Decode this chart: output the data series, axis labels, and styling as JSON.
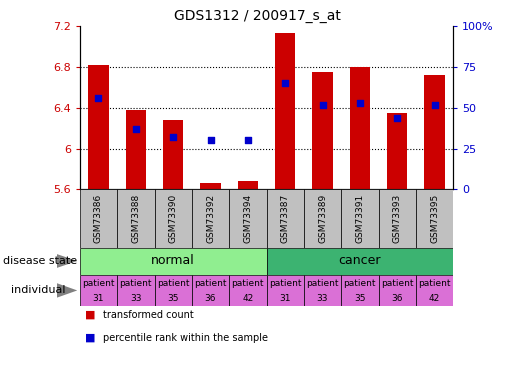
{
  "title": "GDS1312 / 200917_s_at",
  "samples": [
    "GSM73386",
    "GSM73388",
    "GSM73390",
    "GSM73392",
    "GSM73394",
    "GSM73387",
    "GSM73389",
    "GSM73391",
    "GSM73393",
    "GSM73395"
  ],
  "transformed_count": [
    6.82,
    6.38,
    6.28,
    5.66,
    5.68,
    7.13,
    6.75,
    6.8,
    6.35,
    6.72
  ],
  "percentile_rank": [
    56,
    37,
    32,
    30,
    30,
    65,
    52,
    53,
    44,
    52
  ],
  "y_min": 5.6,
  "y_max": 7.2,
  "y_ticks": [
    5.6,
    6.0,
    6.4,
    6.8,
    7.2
  ],
  "y_tick_labels": [
    "5.6",
    "6",
    "6.4",
    "6.8",
    "7.2"
  ],
  "right_y_ticks": [
    0,
    25,
    50,
    75,
    100
  ],
  "right_y_labels": [
    "0",
    "25",
    "50",
    "75",
    "100%"
  ],
  "disease_groups": [
    {
      "label": "normal",
      "start": 0,
      "end": 5,
      "color": "#90EE90"
    },
    {
      "label": "cancer",
      "start": 5,
      "end": 10,
      "color": "#3CB371"
    }
  ],
  "individuals": [
    [
      "patient",
      "31"
    ],
    [
      "patient",
      "33"
    ],
    [
      "patient",
      "35"
    ],
    [
      "patient",
      "36"
    ],
    [
      "patient",
      "42"
    ],
    [
      "patient",
      "31"
    ],
    [
      "patient",
      "33"
    ],
    [
      "patient",
      "35"
    ],
    [
      "patient",
      "36"
    ],
    [
      "patient",
      "42"
    ]
  ],
  "individual_color": "#DA70D6",
  "bar_color": "#CC0000",
  "dot_color": "#0000CC",
  "bar_width": 0.55,
  "tick_label_color_left": "#CC0000",
  "tick_label_color_right": "#0000CC",
  "sample_bg_color": "#C0C0C0",
  "arrow_color": "#808080",
  "legend_bar_color": "#CC0000",
  "legend_dot_color": "#0000CC"
}
